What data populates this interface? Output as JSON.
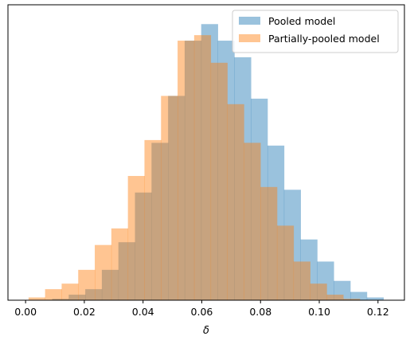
{
  "chart_data": {
    "type": "bar",
    "xlabel": "δ",
    "ylabel": "",
    "xlim": [
      -0.006,
      0.129
    ],
    "ylim": [
      0,
      1.07
    ],
    "y_ticks_shown": false,
    "grid": false,
    "legend_placement": "top-right",
    "x_ticks": [
      0.0,
      0.02,
      0.04,
      0.06,
      0.08,
      0.1,
      0.12
    ],
    "x_tick_labels": [
      "0.00",
      "0.02",
      "0.04",
      "0.06",
      "0.08",
      "0.10",
      "0.12"
    ],
    "series": [
      {
        "name": "Pooled model",
        "color": "#1f77b4",
        "opacity": 0.45,
        "bin_start": 0.0034,
        "bin_width": 0.00564,
        "values": [
          0.0,
          0.005,
          0.02,
          0.04,
          0.11,
          0.21,
          0.39,
          0.57,
          0.74,
          0.94,
          1.0,
          0.94,
          0.88,
          0.73,
          0.56,
          0.4,
          0.22,
          0.14,
          0.07,
          0.03,
          0.01
        ]
      },
      {
        "name": "Partially-pooled model",
        "color": "#ff7f0e",
        "opacity": 0.45,
        "bin_start": 0.001,
        "bin_width": 0.00564,
        "values": [
          0.01,
          0.04,
          0.06,
          0.11,
          0.2,
          0.26,
          0.45,
          0.58,
          0.74,
          0.94,
          0.96,
          0.86,
          0.71,
          0.57,
          0.41,
          0.27,
          0.14,
          0.06,
          0.02,
          0.005
        ]
      }
    ]
  }
}
